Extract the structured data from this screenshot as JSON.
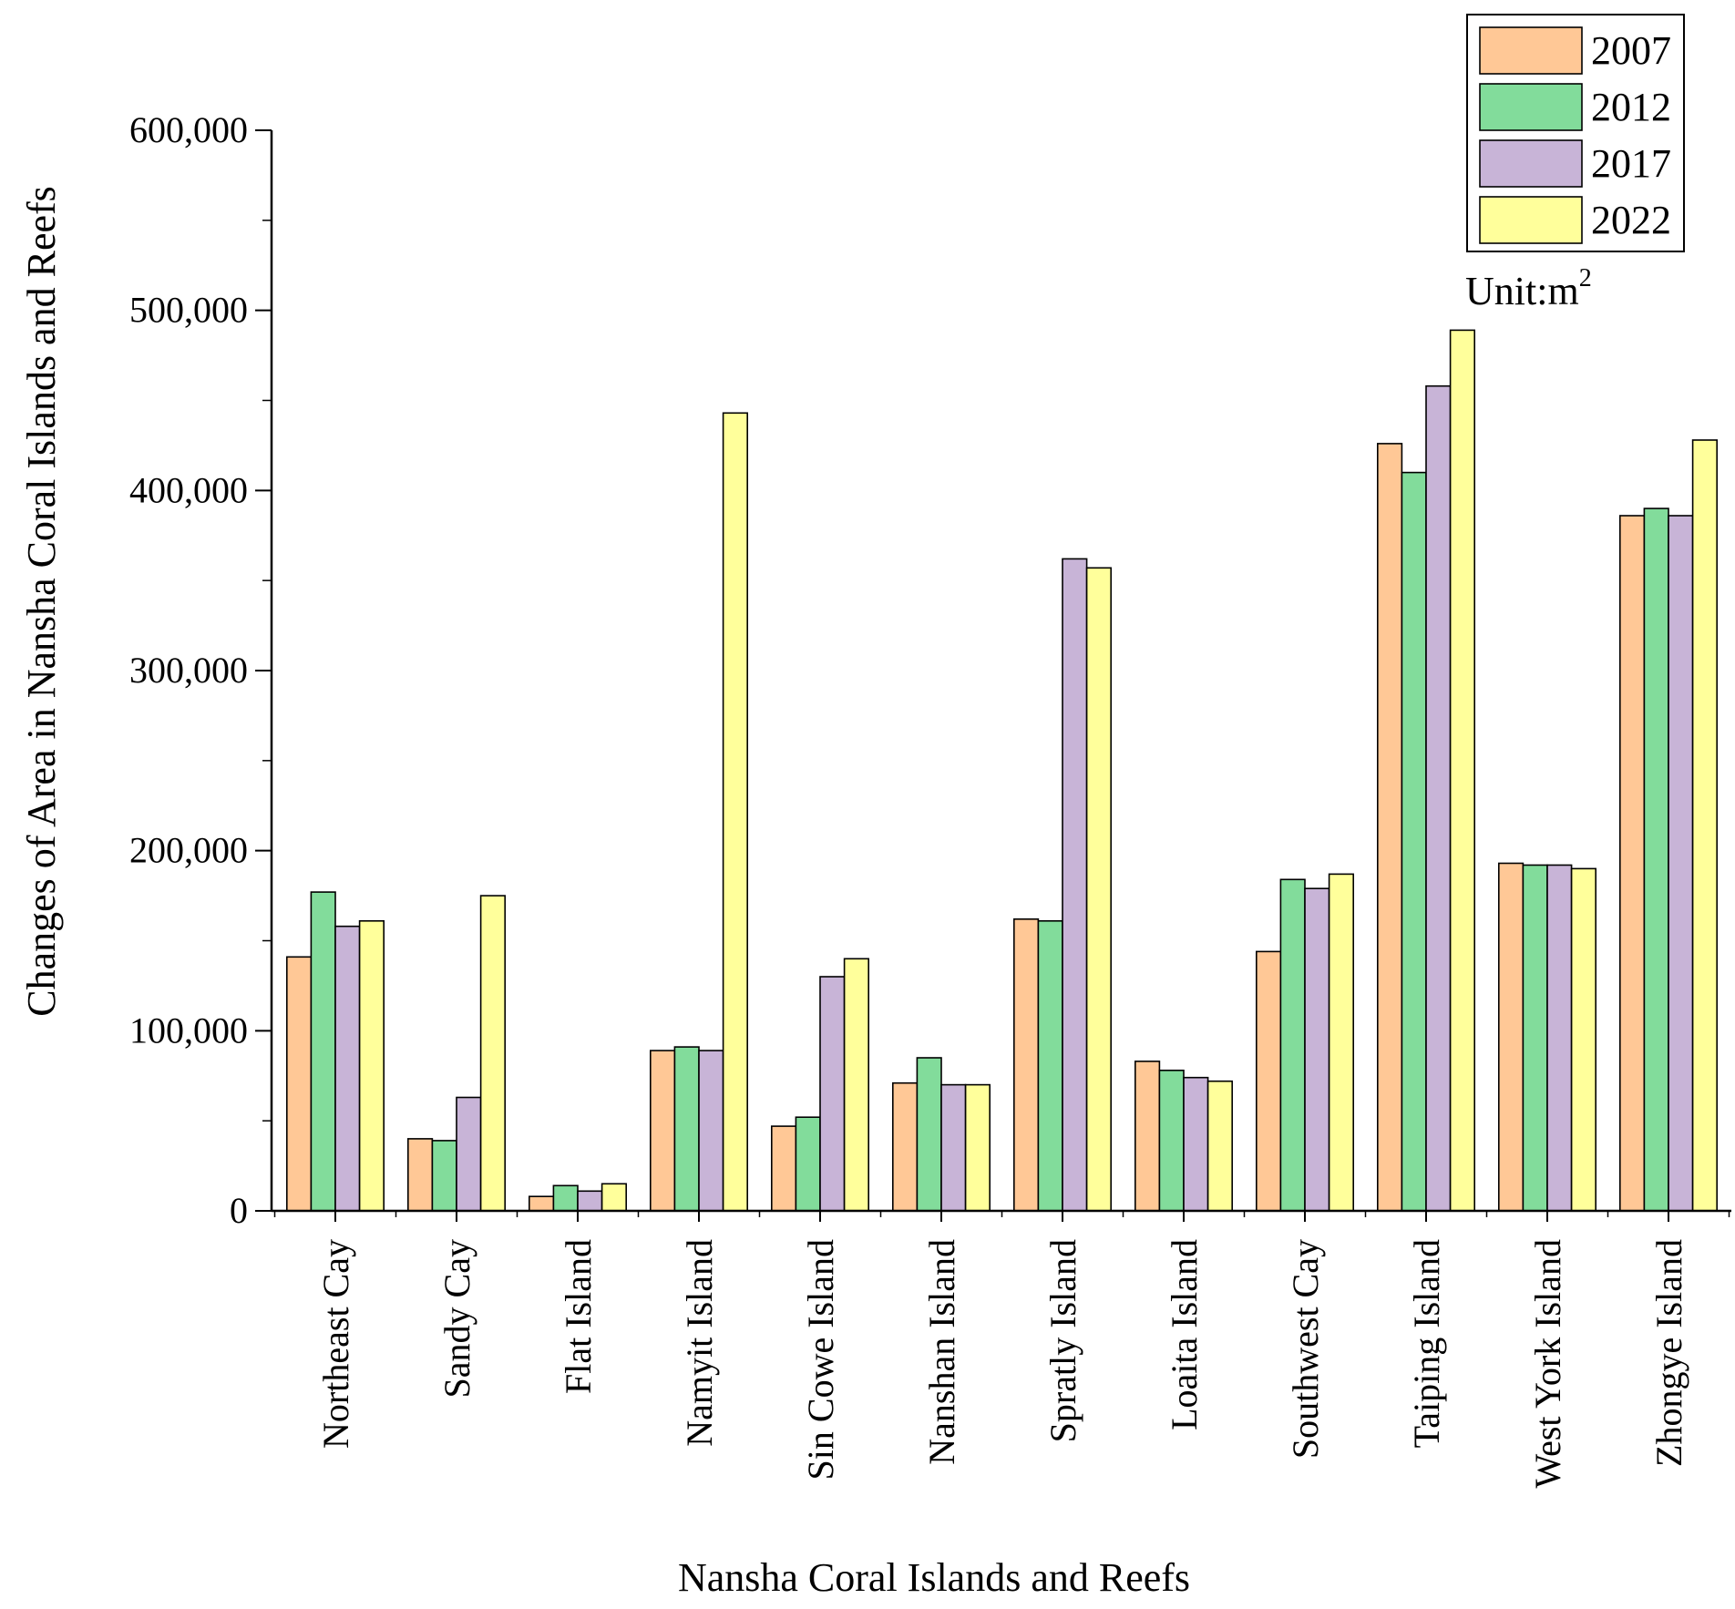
{
  "chart_data": {
    "type": "bar",
    "title": "",
    "xlabel": "Nansha Coral Islands and Reefs",
    "ylabel": "Changes of Area in Nansha Coral Islands and Reefs",
    "unit_text": "Unit:m",
    "unit_sup": "2",
    "ylim": [
      0,
      600000
    ],
    "yticks": [
      0,
      100000,
      200000,
      300000,
      400000,
      500000,
      600000
    ],
    "ytick_labels": [
      "0",
      "100,000",
      "200,000",
      "300,000",
      "400,000",
      "500,000",
      "600,000"
    ],
    "legend_position": "top-right",
    "grid": false,
    "categories": [
      "Northeast Cay",
      "Sandy Cay",
      "Flat Island",
      "Namyit Island",
      "Sin Cowe Island",
      "Nanshan Island",
      "Spratly Island",
      "Loaita Island",
      "Southwest Cay",
      "Taiping Island",
      "West York Island",
      "Zhongye Island"
    ],
    "series": [
      {
        "name": "2007",
        "color": "#FFC896",
        "values": [
          141000,
          40000,
          8000,
          89000,
          47000,
          71000,
          162000,
          83000,
          144000,
          426000,
          193000,
          386000
        ]
      },
      {
        "name": "2012",
        "color": "#82DC9B",
        "values": [
          177000,
          39000,
          14000,
          91000,
          52000,
          85000,
          161000,
          78000,
          184000,
          410000,
          192000,
          390000
        ]
      },
      {
        "name": "2017",
        "color": "#C8B4D7",
        "values": [
          158000,
          63000,
          11000,
          89000,
          130000,
          70000,
          362000,
          74000,
          179000,
          458000,
          192000,
          386000
        ]
      },
      {
        "name": "2022",
        "color": "#FFFF9B",
        "values": [
          161000,
          175000,
          15000,
          443000,
          140000,
          70000,
          357000,
          72000,
          187000,
          489000,
          190000,
          428000
        ]
      }
    ]
  }
}
